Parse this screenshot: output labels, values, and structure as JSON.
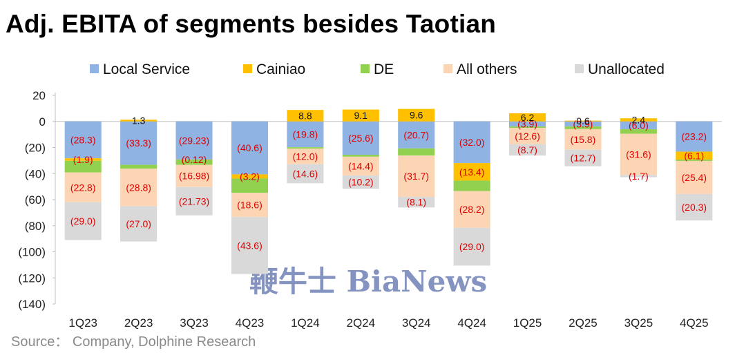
{
  "title": "Adj. EBITA of segments besides Taotian",
  "source": "Source：  Company, Dolphine Research",
  "watermark": "鞭牛士 BiaNews",
  "chart_data": {
    "type": "bar",
    "stacked": true,
    "title": "Adj. EBITA of segments besides Taotian",
    "categories": [
      "1Q23",
      "2Q23",
      "3Q23",
      "4Q23",
      "1Q24",
      "2Q24",
      "3Q24",
      "4Q24",
      "1Q25",
      "2Q25",
      "3Q25",
      "4Q25"
    ],
    "ylim": [
      -140,
      20
    ],
    "yticks": [
      20,
      0,
      -20,
      -40,
      -60,
      -80,
      -100,
      -120,
      -140
    ],
    "ytick_labels": [
      "20",
      "0",
      "(20)",
      "(40)",
      "(60)",
      "(80)",
      "(100)",
      "(120)",
      "(140)"
    ],
    "legend_position": "top",
    "grid": false,
    "series": [
      {
        "name": "Local Service",
        "color": "#8fb3e3",
        "values": [
          -28.3,
          -33.3,
          -29.23,
          -40.6,
          -19.8,
          -25.6,
          -20.7,
          -32.0,
          -3.9,
          -3.9,
          -6.0,
          -23.2
        ],
        "labels": [
          "(28.3)",
          "(33.3)",
          "(29.23)",
          "(40.6)",
          "(19.8)",
          "(25.6)",
          "(20.7)",
          "(32.0)",
          "(3.9)",
          "(3.9)",
          "(6.0)",
          "(23.2)"
        ]
      },
      {
        "name": "Cainiao",
        "color": "#ffc000",
        "values": [
          -1.9,
          1.3,
          -0.12,
          -3.2,
          8.8,
          9.1,
          9.6,
          -13.4,
          6.2,
          0.6,
          2.4,
          -6.1
        ],
        "labels": [
          "(1.9)",
          "1.3",
          "(0.12)",
          "(3.2)",
          "8.8",
          "9.1",
          "9.6",
          "(13.4)",
          "6.2",
          "0.6",
          "2.4",
          "(6.1)"
        ]
      },
      {
        "name": "DE",
        "color": "#92d050",
        "values": [
          -9.0,
          -3.0,
          -4.0,
          -11.0,
          -1.0,
          -1.5,
          -5.5,
          -8.0,
          -1.0,
          -2.0,
          -3.5,
          -1.0
        ],
        "labels": [
          "",
          "",
          "",
          "",
          "",
          "",
          "",
          "",
          "",
          "",
          "",
          ""
        ]
      },
      {
        "name": "All others",
        "color": "#fcd5b5",
        "values": [
          -22.8,
          -28.8,
          -16.98,
          -18.6,
          -12.0,
          -14.4,
          -31.7,
          -28.2,
          -12.6,
          -15.8,
          -31.6,
          -25.4
        ],
        "labels": [
          "(22.8)",
          "(28.8)",
          "(16.98)",
          "(18.6)",
          "(12.0)",
          "(14.4)",
          "(31.7)",
          "(28.2)",
          "(12.6)",
          "(15.8)",
          "(31.6)",
          "(25.4)"
        ]
      },
      {
        "name": "Unallocated",
        "color": "#d9d9d9",
        "values": [
          -29.0,
          -27.0,
          -21.73,
          -43.6,
          -14.6,
          -10.2,
          -8.1,
          -29.0,
          -8.7,
          -12.7,
          -1.7,
          -20.3
        ],
        "labels": [
          "(29.0)",
          "(27.0)",
          "(21.73)",
          "(43.6)",
          "(14.6)",
          "(10.2)",
          "(8.1)",
          "(29.0)",
          "(8.7)",
          "(12.7)",
          "(1.7)",
          "(20.3)"
        ]
      }
    ]
  }
}
